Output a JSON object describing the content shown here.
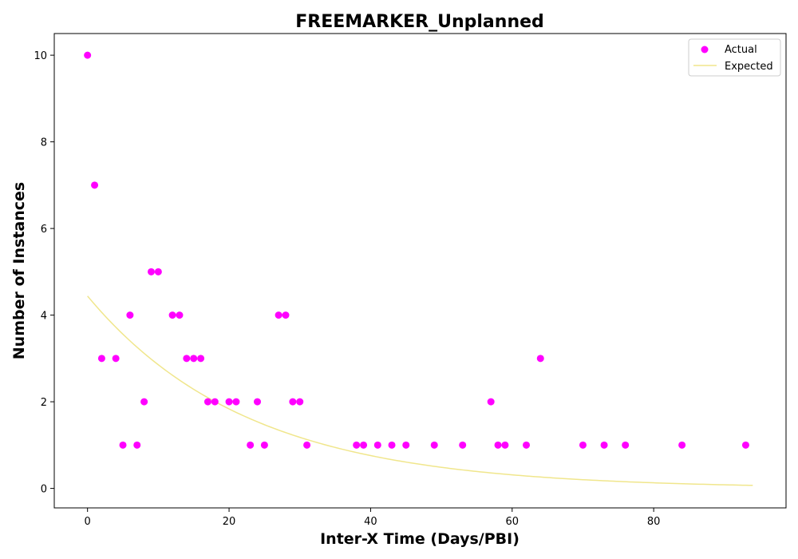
{
  "chart_data": {
    "type": "scatter",
    "title": "FREEMARKER_Unplanned",
    "xlabel": "Inter-X Time (Days/PBI)",
    "ylabel": "Number of Instances",
    "xlim": [
      -4.7,
      98.7
    ],
    "ylim": [
      -0.45,
      10.5
    ],
    "xticks": [
      0,
      20,
      40,
      60,
      80
    ],
    "yticks": [
      0,
      2,
      4,
      6,
      8,
      10
    ],
    "grid": false,
    "legend_position": "top-right",
    "series": [
      {
        "name": "Actual",
        "kind": "scatter",
        "color": "#ff00ff",
        "points": [
          [
            0,
            10
          ],
          [
            1,
            7
          ],
          [
            2,
            3
          ],
          [
            4,
            3
          ],
          [
            5,
            1
          ],
          [
            6,
            4
          ],
          [
            7,
            1
          ],
          [
            8,
            2
          ],
          [
            9,
            5
          ],
          [
            10,
            5
          ],
          [
            12,
            4
          ],
          [
            13,
            4
          ],
          [
            14,
            3
          ],
          [
            15,
            3
          ],
          [
            16,
            3
          ],
          [
            17,
            2
          ],
          [
            18,
            2
          ],
          [
            20,
            2
          ],
          [
            21,
            2
          ],
          [
            23,
            1
          ],
          [
            24,
            2
          ],
          [
            25,
            1
          ],
          [
            27,
            4
          ],
          [
            28,
            4
          ],
          [
            29,
            2
          ],
          [
            30,
            2
          ],
          [
            31,
            1
          ],
          [
            38,
            1
          ],
          [
            39,
            1
          ],
          [
            41,
            1
          ],
          [
            43,
            1
          ],
          [
            45,
            1
          ],
          [
            49,
            1
          ],
          [
            53,
            1
          ],
          [
            57,
            2
          ],
          [
            58,
            1
          ],
          [
            59,
            1
          ],
          [
            62,
            1
          ],
          [
            64,
            3
          ],
          [
            70,
            1
          ],
          [
            73,
            1
          ],
          [
            76,
            1
          ],
          [
            84,
            1
          ],
          [
            93,
            1
          ]
        ]
      },
      {
        "name": "Expected",
        "kind": "line",
        "color": "#f0e68c",
        "curve": {
          "form": "exponential",
          "a": 4.44,
          "b": 0.0442,
          "x_start": 0,
          "x_end": 94
        }
      }
    ]
  }
}
